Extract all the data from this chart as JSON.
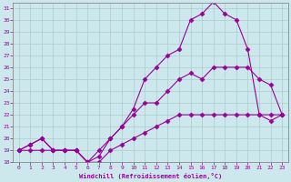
{
  "xlabel": "Windchill (Refroidissement éolien,°C)",
  "xlim": [
    -0.5,
    23.5
  ],
  "ylim": [
    18,
    31.4
  ],
  "xticks": [
    0,
    1,
    2,
    3,
    4,
    5,
    6,
    7,
    8,
    9,
    10,
    11,
    12,
    13,
    14,
    15,
    16,
    17,
    18,
    19,
    20,
    21,
    22,
    23
  ],
  "yticks": [
    18,
    19,
    20,
    21,
    22,
    23,
    24,
    25,
    26,
    27,
    28,
    29,
    30,
    31
  ],
  "line_color": "#990099",
  "bg_color": "#cde8ec",
  "grid_color": "#aacccc",
  "line1_x": [
    0,
    1,
    2,
    3,
    4,
    5,
    6,
    7,
    8,
    9,
    10,
    11,
    12,
    13,
    14,
    15,
    16,
    17,
    18,
    19,
    20,
    21,
    22,
    23
  ],
  "line1_y": [
    19,
    19,
    19,
    19,
    19,
    19,
    18,
    18,
    19,
    19.5,
    20,
    20.5,
    21,
    21.5,
    22,
    22,
    22,
    22,
    22,
    22,
    22,
    22,
    22,
    22
  ],
  "line2_x": [
    0,
    1,
    2,
    3,
    4,
    5,
    6,
    7,
    8,
    9,
    10,
    11,
    12,
    13,
    14,
    15,
    16,
    17,
    18,
    19,
    20,
    21,
    22,
    23
  ],
  "line2_y": [
    19,
    19.5,
    20,
    19,
    19,
    19,
    18,
    19,
    20,
    21,
    22,
    23,
    23,
    24,
    25,
    25.5,
    25,
    26,
    26,
    26,
    26,
    25,
    24.5,
    22
  ],
  "line3_x": [
    0,
    1,
    2,
    3,
    4,
    5,
    6,
    7,
    8,
    9,
    10,
    11,
    12,
    13,
    14,
    15,
    16,
    17,
    18,
    19,
    20,
    21,
    22,
    23
  ],
  "line3_y": [
    19,
    19.5,
    20,
    19,
    19,
    19,
    18,
    18.5,
    20,
    21,
    22.5,
    25,
    26,
    27,
    27.5,
    30,
    30.5,
    31.5,
    30.5,
    30,
    27.5,
    22,
    21.5,
    22
  ]
}
